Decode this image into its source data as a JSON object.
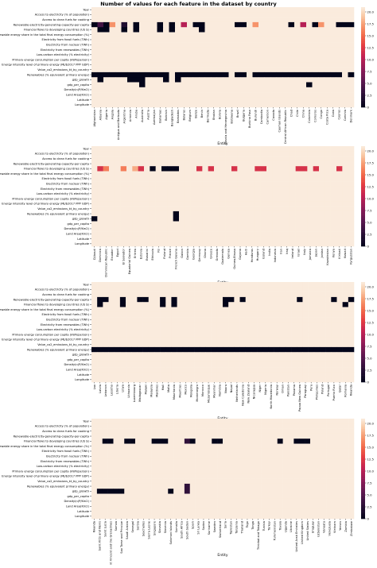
{
  "chart_data": {
    "type": "heatmap",
    "title": "Number of values for each feature in the dataset by country",
    "xlabel": "Entity",
    "features": [
      "Year",
      "Access to electricity (% of population)",
      "Access to clean fuels for cooking",
      "Renewable-electricity-generating-capacity-per-capita",
      "Financial flows to developing countries (US $)",
      "Renewable energy share in the total final energy consumption (%)",
      "Electricity from fossil fuels (TWh)",
      "Electricity from nuclear (TWh)",
      "Electricity from renewables (TWh)",
      "Low-carbon electricity (% electricity)",
      "Primary energy consumption per capita (kWh/person)",
      "Energy intensity level of primary energy (MJ/$2017 PPP GDP)",
      "Value_co2_emissions_kt_by_country",
      "Renewables (% equivalent primary energy)",
      "gdp_growth",
      "gdp_per_capita",
      "Density\\n(P/Km2)",
      "Land Area(Km2)",
      "Latitude",
      "Longitude"
    ],
    "colorbar": {
      "min": 0,
      "max": 21,
      "ticks": [
        0,
        2.5,
        5,
        7.5,
        10,
        12.5,
        15,
        17.5,
        20
      ],
      "tick_labels": [
        "0",
        "2.5",
        "5.0",
        "7.5",
        "10.0",
        "12.5",
        "15.0",
        "17.5",
        "20.0"
      ]
    },
    "panels": [
      {
        "entities": [
          "Afghanistan",
          "Albania",
          "Algeria",
          "Angola",
          "Antigua and Barbuda",
          "Argentina",
          "Armenia",
          "Aruba",
          "Australia",
          "Austria",
          "Azerbaijan",
          "Bahamas",
          "Bahrain",
          "Bangladesh",
          "Barbados",
          "Belarus",
          "Belgium",
          "Belize",
          "Benin",
          "Bermuda",
          "Bhutan",
          "Bolivia",
          "Bosnia and Herzegovina",
          "Botswana",
          "Brazil",
          "Bulgaria",
          "Burkina Faso",
          "Burundi",
          "Cambodia",
          "Cameroon",
          "Canada",
          "Cayman Islands",
          "Central African Republic",
          "Chad",
          "Chile",
          "China",
          "Colombia",
          "Comoros",
          "Congo",
          "Costa Rica",
          "Cuba",
          "Cyprus",
          "Czechia",
          "Denmark"
        ],
        "row_values": {
          "3": [
            0,
            4,
            0,
            17,
            21,
            2,
            21,
            0,
            21,
            21,
            21,
            0,
            21,
            0,
            21,
            10,
            21,
            0,
            0,
            21,
            21,
            21,
            21,
            21,
            0,
            0,
            21,
            17,
            21,
            21,
            21,
            21,
            21,
            0,
            21,
            10,
            21,
            0,
            17,
            21,
            21,
            0,
            0,
            0
          ],
          "4": [
            21,
            0,
            0,
            21,
            21,
            0,
            21,
            0,
            21,
            21,
            21,
            0,
            21,
            0,
            21,
            21,
            21,
            21,
            0,
            21,
            21,
            21,
            21,
            21,
            21,
            21,
            21,
            21,
            21,
            21,
            21,
            21,
            21,
            21,
            21,
            21,
            21,
            21,
            21,
            21,
            21,
            21,
            21,
            21
          ],
          "13": [
            0,
            0,
            0,
            0,
            0,
            0,
            0,
            0,
            0,
            0,
            0,
            0,
            0,
            21,
            0,
            0,
            0,
            0,
            0,
            0,
            0,
            0,
            0,
            21,
            0,
            0,
            21,
            0,
            0,
            0,
            0,
            0,
            0,
            0,
            0,
            0,
            0,
            0,
            0,
            0,
            0,
            0,
            21,
            0
          ],
          "14": [
            21,
            0,
            21,
            21,
            21,
            21,
            0,
            0,
            0,
            21,
            21,
            21,
            0,
            21,
            0,
            21,
            21,
            21,
            21,
            21,
            21,
            21,
            21,
            21,
            21,
            21,
            21,
            21,
            21,
            21,
            21,
            21,
            21,
            21,
            21,
            21,
            21,
            21,
            21,
            21,
            21,
            21,
            21,
            21
          ],
          "15": [
            21,
            21,
            21,
            21,
            21,
            21,
            21,
            21,
            0,
            21,
            21,
            21,
            21,
            21,
            21,
            21,
            21,
            21,
            21,
            21,
            21,
            21,
            21,
            21,
            21,
            21,
            21,
            21,
            21,
            21,
            21,
            21,
            21,
            21,
            21,
            21,
            0,
            21,
            21,
            21,
            21,
            21,
            21,
            21
          ]
        }
      },
      {
        "entities": [
          "Djibouti",
          "Dominica",
          "Dominican Republic",
          "Ecuador",
          "Egypt",
          "El Salvador",
          "Equatorial Guinea",
          "Eritrea",
          "Estonia",
          "Eswatini",
          "Ethiopia",
          "Fiji",
          "Finland",
          "France",
          "French Guiana",
          "Gabon",
          "Gambia",
          "Georgia",
          "Germany",
          "Ghana",
          "Greece",
          "Grenada",
          "Guatemala",
          "Guinea",
          "Guinea-Bissau",
          "Guyana",
          "Haiti",
          "Honduras",
          "Hungary",
          "Iceland",
          "India",
          "Indonesia",
          "Iran",
          "Iraq",
          "Ireland",
          "Israel",
          "Italy",
          "Jamaica",
          "Japan",
          "Jordan",
          "Kazakhstan",
          "Kenya",
          "Kiribati",
          "Kuwait",
          "Kyrgyzstan"
        ],
        "row_values": {
          "4": [
            21,
            12,
            16,
            21,
            21,
            16,
            21,
            18,
            12,
            21,
            0,
            21,
            0,
            0,
            0,
            21,
            21,
            21,
            12,
            21,
            12,
            21,
            21,
            21,
            12,
            21,
            21,
            21,
            12,
            12,
            21,
            21,
            21,
            21,
            21,
            12,
            12,
            21,
            12,
            21,
            21,
            21,
            12,
            21,
            21
          ],
          "13": [
            21,
            21,
            21,
            21,
            21,
            21,
            21,
            21,
            21,
            21,
            21,
            21,
            21,
            21,
            0,
            21,
            21,
            21,
            21,
            21,
            21,
            21,
            21,
            21,
            21,
            21,
            21,
            21,
            21,
            21,
            21,
            21,
            21,
            21,
            21,
            21,
            21,
            21,
            21,
            21,
            21,
            21,
            21,
            21,
            21
          ],
          "14": [
            0,
            21,
            21,
            21,
            21,
            21,
            21,
            21,
            21,
            21,
            21,
            21,
            21,
            21,
            0,
            21,
            21,
            21,
            21,
            21,
            21,
            21,
            21,
            21,
            21,
            21,
            21,
            21,
            21,
            21,
            21,
            21,
            21,
            21,
            21,
            21,
            21,
            21,
            21,
            21,
            21,
            21,
            21,
            21,
            21
          ]
        }
      },
      {
        "entities": [
          "Lao",
          "Latvia",
          "Lebanon",
          "Lesotho",
          "Liberia",
          "Libya",
          "Lithuania",
          "Luxembourg",
          "Madagascar",
          "Malawi",
          "Malaysia",
          "Maldives",
          "Mali",
          "Malta",
          "Mauritania",
          "Mauritius",
          "Mexico",
          "Mongolia",
          "Montenegro",
          "Morocco",
          "Mozambique",
          "Myanmar",
          "Namibia",
          "Nauru",
          "Nepal",
          "Netherlands",
          "New Caledonia",
          "New Zealand",
          "Nicaragua",
          "Niger",
          "Nigeria",
          "North Macedonia",
          "Norway",
          "Oman",
          "Pakistan",
          "Panama",
          "Papua New Guinea",
          "Paraguay",
          "Peru",
          "Philippines",
          "Poland",
          "Portugal",
          "Puerto Rico",
          "Qatar",
          "Romania",
          "Rwanda"
        ],
        "row_values": {
          "3": [
            21,
            0,
            0,
            21,
            21,
            0,
            21,
            21,
            0,
            0,
            21,
            21,
            0,
            21,
            0,
            21,
            21,
            21,
            21,
            21,
            21,
            21,
            21,
            0,
            0,
            21,
            0,
            21,
            21,
            21,
            21,
            21,
            21,
            21,
            21,
            21,
            0,
            21,
            21,
            21,
            21,
            21,
            0,
            21,
            21,
            0
          ],
          "4": [
            21,
            0,
            21,
            21,
            21,
            0,
            21,
            21,
            21,
            21,
            21,
            21,
            0,
            21,
            0,
            21,
            21,
            21,
            21,
            21,
            21,
            21,
            21,
            0,
            21,
            21,
            21,
            21,
            21,
            21,
            21,
            21,
            21,
            21,
            21,
            21,
            21,
            21,
            21,
            21,
            21,
            21,
            21,
            21,
            0,
            21
          ],
          "13": [
            0,
            0,
            0,
            0,
            0,
            0,
            0,
            0,
            0,
            0,
            0,
            0,
            0,
            0,
            0,
            0,
            0,
            0,
            0,
            0,
            0,
            0,
            0,
            0,
            0,
            0,
            0,
            0,
            0,
            0,
            0,
            0,
            0,
            0,
            0,
            0,
            0,
            0,
            0,
            0,
            0,
            0,
            0,
            0,
            0,
            0
          ]
        }
      },
      {
        "entities": [
          "Rwanda",
          "Saint Kitts and Nevis",
          "Saint Lucia",
          "Saint Vincent and the Grenadines",
          "Samoa",
          "Sao Tome and Principe",
          "Saudi Arabia",
          "Senegal",
          "Serbia",
          "Seychelles",
          "Sierra Leone",
          "Singapore",
          "Slovakia",
          "Slovenia",
          "Solomon Islands",
          "Somalia",
          "South Africa",
          "South Sudan",
          "Spain",
          "Sri Lanka",
          "Sudan",
          "Suriname",
          "Sweden",
          "Switzerland",
          "Syria",
          "Tajikistan",
          "Tanzania",
          "Thailand",
          "Togo",
          "Tonga",
          "Trinidad and Tobago",
          "Tunisia",
          "Turkey",
          "Turkmenistan",
          "Tuvalu",
          "Uganda",
          "Ukraine",
          "United Arab Emirates",
          "United Kingdom",
          "United States",
          "Uruguay",
          "Uzbekistan",
          "Vanuatu",
          "Venezuela",
          "Vietnam",
          "Yemen",
          "Zambia",
          "Zimbabwe"
        ],
        "row_values": {
          "4": [
            21,
            21,
            0,
            0,
            21,
            21,
            0,
            0,
            21,
            21,
            21,
            0,
            0,
            0,
            21,
            21,
            21,
            3,
            0,
            21,
            21,
            21,
            0,
            0,
            21,
            21,
            21,
            21,
            21,
            21,
            21,
            21,
            21,
            21,
            0,
            21,
            21,
            0,
            0,
            0,
            21,
            21,
            21,
            21,
            21,
            21,
            21,
            21
          ],
          "13": [
            21,
            21,
            21,
            21,
            21,
            21,
            21,
            21,
            21,
            21,
            21,
            21,
            21,
            21,
            21,
            21,
            21,
            3,
            21,
            21,
            21,
            21,
            21,
            21,
            21,
            21,
            21,
            21,
            21,
            21,
            21,
            21,
            21,
            21,
            21,
            21,
            21,
            21,
            21,
            21,
            21,
            21,
            21,
            21,
            21,
            21,
            21,
            21
          ],
          "14": [
            21,
            0,
            0,
            0,
            0,
            0,
            21,
            21,
            21,
            21,
            21,
            21,
            21,
            21,
            0,
            21,
            21,
            3,
            21,
            21,
            21,
            21,
            21,
            21,
            21,
            21,
            21,
            21,
            21,
            21,
            21,
            21,
            21,
            21,
            21,
            21,
            21,
            21,
            21,
            21,
            21,
            21,
            21,
            21,
            21,
            21,
            21,
            21
          ]
        }
      }
    ]
  }
}
